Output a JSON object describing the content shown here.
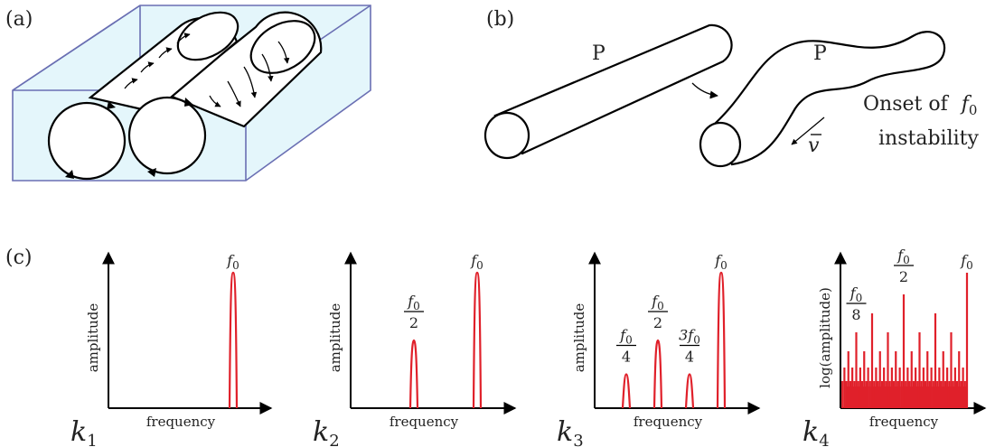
{
  "panel_labels": [
    "(a)",
    "(b)",
    "(c)"
  ],
  "panel_b": {
    "tube_label_left": "P",
    "tube_label_right": "P",
    "onset_line1": "Onset of",
    "onset_symbol": "f",
    "onset_sub": "0",
    "onset_line2": "instability",
    "velocity_symbol": "v"
  },
  "chart_data": [
    {
      "type": "bar",
      "panel_label": "k",
      "panel_sub": "1",
      "xlabel": "frequency",
      "ylabel": "amplitude",
      "peaks": [
        {
          "x": 1.0,
          "y": 1.0,
          "label_num": "f",
          "label_sub": "0",
          "label_den": ""
        }
      ]
    },
    {
      "type": "bar",
      "panel_label": "k",
      "panel_sub": "2",
      "xlabel": "frequency",
      "ylabel": "amplitude",
      "peaks": [
        {
          "x": 0.5,
          "y": 0.5,
          "label_num": "f",
          "label_sub": "0",
          "label_den": "2"
        },
        {
          "x": 1.0,
          "y": 1.0,
          "label_num": "f",
          "label_sub": "0",
          "label_den": ""
        }
      ]
    },
    {
      "type": "bar",
      "panel_label": "k",
      "panel_sub": "3",
      "xlabel": "frequency",
      "ylabel": "amplitude",
      "peaks": [
        {
          "x": 0.25,
          "y": 0.25,
          "label_num": "f",
          "label_sub": "0",
          "label_den": "4"
        },
        {
          "x": 0.5,
          "y": 0.5,
          "label_num": "f",
          "label_sub": "0",
          "label_den": "2"
        },
        {
          "x": 0.75,
          "y": 0.25,
          "label_num": "3f",
          "label_sub": "0",
          "label_den": "4"
        },
        {
          "x": 1.0,
          "y": 1.0,
          "label_num": "f",
          "label_sub": "0",
          "label_den": ""
        }
      ]
    },
    {
      "type": "bar",
      "panel_label": "k",
      "panel_sub": "4",
      "xlabel": "frequency",
      "ylabel": "log(amplitude)",
      "labels": [
        {
          "x": 0.125,
          "label_num": "f",
          "label_sub": "0",
          "label_den": "8"
        },
        {
          "x": 0.5,
          "label_num": "f",
          "label_sub": "0",
          "label_den": "2"
        },
        {
          "x": 1.0,
          "label_num": "f",
          "label_sub": "0",
          "label_den": ""
        }
      ],
      "comb_spacing": 0.015625,
      "comb_floor": 0.2,
      "harmonic_levels": [
        {
          "divisor": 1,
          "y": 1.0
        },
        {
          "divisor": 2,
          "y": 0.84
        },
        {
          "divisor": 4,
          "y": 0.7
        },
        {
          "divisor": 8,
          "y": 0.56
        },
        {
          "divisor": 16,
          "y": 0.42
        },
        {
          "divisor": 32,
          "y": 0.3
        }
      ]
    }
  ]
}
